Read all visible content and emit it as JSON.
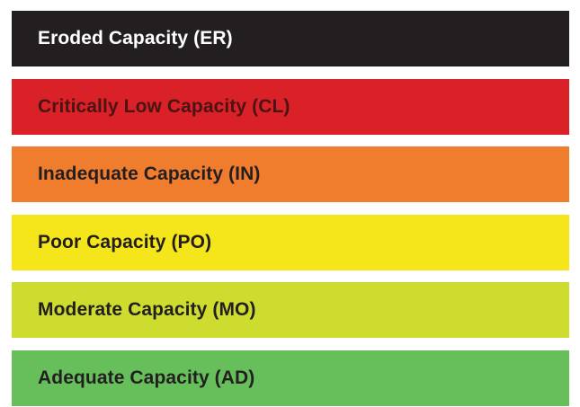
{
  "items": [
    {
      "label": "Eroded Capacity (ER)",
      "color": "#231f20",
      "text_color": "#ffffff"
    },
    {
      "label": "Critically Low Capacity (CL)",
      "color": "#da2128",
      "text_color": "#4a1414"
    },
    {
      "label": "Inadequate Capacity (IN)",
      "color": "#ef7d2d",
      "text_color": "#231f20"
    },
    {
      "label": "Poor Capacity (PO)",
      "color": "#f5e61c",
      "text_color": "#231f20"
    },
    {
      "label": "Moderate Capacity (MO)",
      "color": "#cddc2f",
      "text_color": "#231f20"
    },
    {
      "label": "Adequate Capacity (AD)",
      "color": "#66bf5a",
      "text_color": "#231f20"
    }
  ]
}
